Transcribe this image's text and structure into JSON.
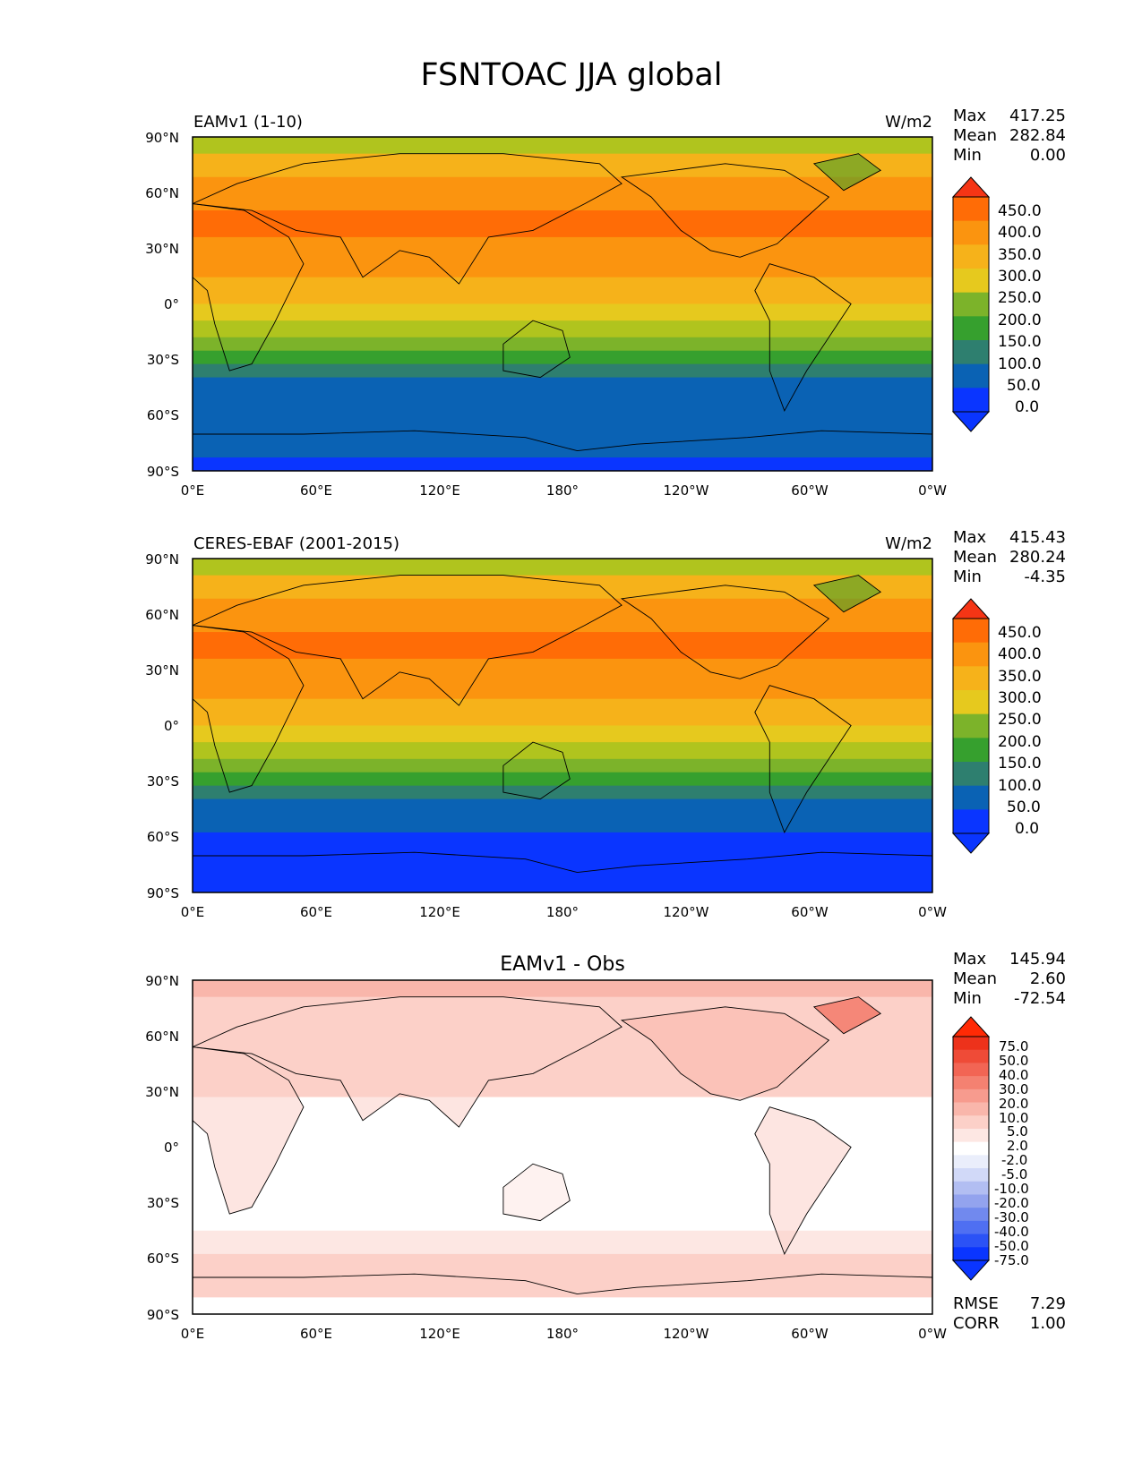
{
  "title": "FSNTOAC JJA global",
  "x_ticks": [
    "0°E",
    "60°E",
    "120°E",
    "180°",
    "120°W",
    "60°W",
    "0°W"
  ],
  "y_ticks": [
    "90°N",
    "60°N",
    "30°N",
    "0°",
    "30°S",
    "60°S",
    "90°S"
  ],
  "colors": {
    "field": [
      "#0a35ff",
      "#0a62b4",
      "#2e7f6f",
      "#36a02e",
      "#7cb32a",
      "#b0c41e",
      "#e6c91e",
      "#f6b21a",
      "#fb940f",
      "#ff6c06",
      "#f53515"
    ],
    "diff": [
      "#0a35ff",
      "#2b52f6",
      "#4f6ff2",
      "#7189ee",
      "#93a3ee",
      "#b2bef2",
      "#d1d9f8",
      "#eaeefb",
      "#ffffff",
      "#ffffff",
      "#fde7e3",
      "#fcd0c8",
      "#f9b6ab",
      "#f79b8e",
      "#f48171",
      "#f26554",
      "#ef4b37",
      "#ed321b",
      "#ff2a05"
    ],
    "coast": "#000000"
  },
  "chart_data": [
    {
      "type": "heatmap",
      "panel": "test",
      "title_left": "EAMv1 (1-10)",
      "title_right": "W/m2",
      "stats_labels": [
        "Max",
        "Mean",
        "Min"
      ],
      "stats_values": [
        "417.25",
        "282.84",
        "0.00"
      ],
      "colorbar_levels": [
        "450.0",
        "400.0",
        "350.0",
        "300.0",
        "250.0",
        "200.0",
        "150.0",
        "100.0",
        "50.0",
        "0.0"
      ],
      "lat_range": [
        -90,
        90
      ],
      "lon_range": [
        0,
        360
      ]
    },
    {
      "type": "heatmap",
      "panel": "reference",
      "title_left": "CERES-EBAF (2001-2015)",
      "title_right": "W/m2",
      "stats_labels": [
        "Max",
        "Mean",
        "Min"
      ],
      "stats_values": [
        "415.43",
        "280.24",
        "-4.35"
      ],
      "colorbar_levels": [
        "450.0",
        "400.0",
        "350.0",
        "300.0",
        "250.0",
        "200.0",
        "150.0",
        "100.0",
        "50.0",
        "0.0"
      ],
      "lat_range": [
        -90,
        90
      ],
      "lon_range": [
        0,
        360
      ]
    },
    {
      "type": "heatmap",
      "panel": "difference",
      "title_center": "EAMv1 - Obs",
      "stats_labels": [
        "Max",
        "Mean",
        "Min"
      ],
      "stats_values": [
        "145.94",
        "2.60",
        "-72.54"
      ],
      "colorbar_levels": [
        "75.0",
        "50.0",
        "40.0",
        "30.0",
        "20.0",
        "10.0",
        "5.0",
        "2.0",
        "-2.0",
        "-5.0",
        "-10.0",
        "-20.0",
        "-30.0",
        "-40.0",
        "-50.0",
        "-75.0"
      ],
      "metrics_labels": [
        "RMSE",
        "CORR"
      ],
      "metrics_values": [
        "7.29",
        "1.00"
      ],
      "lat_range": [
        -90,
        90
      ],
      "lon_range": [
        0,
        360
      ]
    }
  ]
}
